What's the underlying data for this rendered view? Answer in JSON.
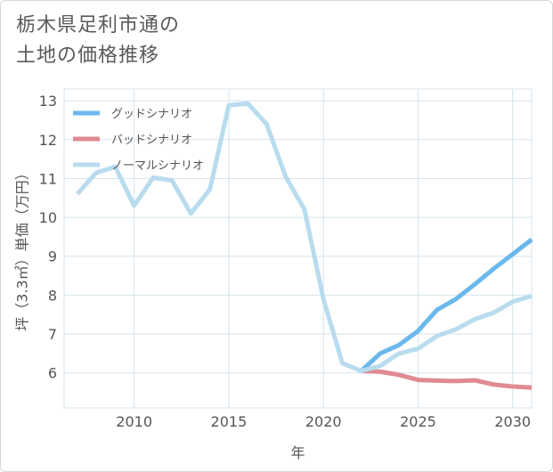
{
  "title": "栃木県足利市通の\n土地の価格推移",
  "chart_data": {
    "type": "line",
    "xlabel": "年",
    "ylabel": "坪（3.3㎡）単価（万円）",
    "xlim": [
      2006.3,
      2031
    ],
    "ylim": [
      5.1,
      13.3
    ],
    "xticks": [
      2010,
      2015,
      2020,
      2025,
      2030
    ],
    "yticks": [
      6,
      7,
      8,
      9,
      10,
      11,
      12,
      13
    ],
    "grid": true,
    "legend_position": "top-left",
    "series": [
      {
        "name": "グッドシナリオ",
        "color": "#6bb8ec",
        "points": [
          [
            2022,
            6.05
          ],
          [
            2023,
            6.5
          ],
          [
            2024,
            6.72
          ],
          [
            2025,
            7.08
          ],
          [
            2026,
            7.62
          ],
          [
            2027,
            7.9
          ],
          [
            2028,
            8.28
          ],
          [
            2029,
            8.68
          ],
          [
            2030,
            9.05
          ],
          [
            2031,
            9.43
          ]
        ]
      },
      {
        "name": "バッドシナリオ",
        "color": "#e08a92",
        "points": [
          [
            2022,
            6.05
          ],
          [
            2023,
            6.03
          ],
          [
            2024,
            5.95
          ],
          [
            2025,
            5.82
          ],
          [
            2026,
            5.8
          ],
          [
            2027,
            5.79
          ],
          [
            2028,
            5.81
          ],
          [
            2029,
            5.7
          ],
          [
            2030,
            5.65
          ],
          [
            2031,
            5.62
          ]
        ]
      },
      {
        "name": "ノーマルシナリオ",
        "color": "#b8dcee",
        "points": [
          [
            2007,
            10.6
          ],
          [
            2008,
            11.15
          ],
          [
            2009,
            11.3
          ],
          [
            2010,
            10.3
          ],
          [
            2011,
            11.02
          ],
          [
            2012,
            10.95
          ],
          [
            2013,
            10.1
          ],
          [
            2014,
            10.72
          ],
          [
            2015,
            12.88
          ],
          [
            2016,
            12.93
          ],
          [
            2017,
            12.4
          ],
          [
            2018,
            11.05
          ],
          [
            2019,
            10.2
          ],
          [
            2020,
            7.9
          ],
          [
            2021,
            6.25
          ],
          [
            2022,
            6.05
          ],
          [
            2023,
            6.18
          ],
          [
            2024,
            6.5
          ],
          [
            2025,
            6.62
          ],
          [
            2026,
            6.95
          ],
          [
            2027,
            7.12
          ],
          [
            2028,
            7.38
          ],
          [
            2029,
            7.55
          ],
          [
            2030,
            7.83
          ],
          [
            2031,
            7.98
          ]
        ]
      }
    ]
  }
}
